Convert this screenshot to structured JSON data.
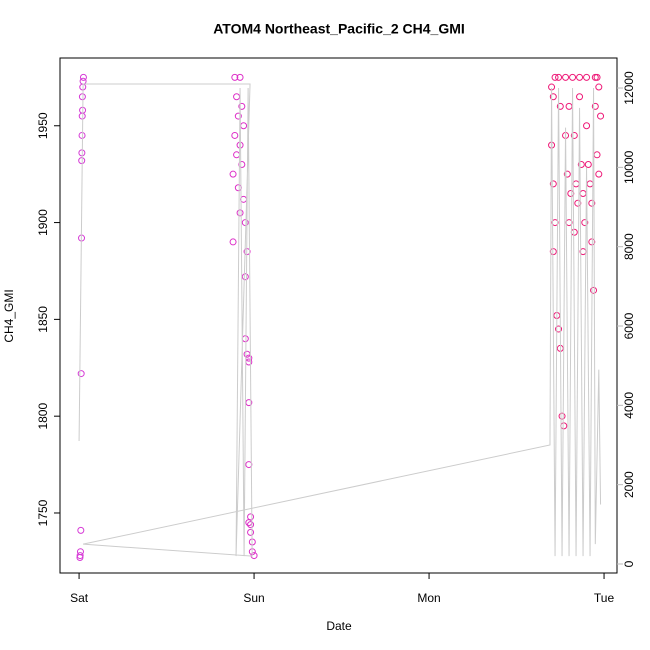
{
  "chart_data": {
    "type": "scatter",
    "title": "ATOM4 Northeast_Pacific_2 CH4_GMI",
    "x_label": "Date",
    "y_label": "CH4_GMI",
    "xlim": [
      -0.109,
      3.074
    ],
    "xticks": [
      {
        "value": 0,
        "label": "Sat"
      },
      {
        "value": 1,
        "label": "Sun"
      },
      {
        "value": 2,
        "label": "Mon"
      },
      {
        "value": 3,
        "label": "Tue"
      }
    ],
    "ylim": [
      1719,
      1985
    ],
    "yticks": [
      1750,
      1800,
      1850,
      1900,
      1950
    ],
    "y2lim": [
      -227,
      12757
    ],
    "y2ticks": [
      0,
      2000,
      4000,
      6000,
      8000,
      10000,
      12000
    ],
    "y2_color": "#bbbbbb",
    "series": [
      {
        "color": "#d63ad6",
        "x": [
          0.025,
          0.023,
          0.021,
          0.019,
          0.02,
          0.018,
          0.017,
          0.016,
          0.015,
          0.014,
          0.012,
          0.01,
          0.008,
          0.006,
          0.005
        ],
        "values": [
          1975,
          1973,
          1970,
          1965,
          1958,
          1955,
          1945,
          1936,
          1932,
          1892,
          1822,
          1741,
          1730,
          1728,
          1727
        ]
      },
      {
        "color": "#dd2fc8",
        "x": [
          0.89,
          0.92,
          0.9,
          0.93,
          0.91,
          0.94,
          0.89,
          0.92,
          0.9,
          0.93,
          0.88,
          0.91,
          0.94,
          0.92,
          0.95,
          0.88,
          0.96,
          0.95,
          0.95,
          0.96,
          0.97,
          0.97,
          0.97,
          0.97,
          0.98,
          0.97,
          0.98,
          0.98,
          0.99,
          0.99,
          1.0
        ],
        "values": [
          1975,
          1975,
          1965,
          1960,
          1955,
          1950,
          1945,
          1940,
          1935,
          1930,
          1925,
          1918,
          1912,
          1905,
          1900,
          1890,
          1885,
          1872,
          1840,
          1832,
          1830,
          1828,
          1807,
          1775,
          1748,
          1745,
          1744,
          1740,
          1735,
          1730,
          1728
        ]
      },
      {
        "color": "#ee1a78",
        "x": [
          2.7,
          2.71,
          2.72,
          2.7,
          2.71,
          2.72,
          2.71,
          2.73,
          2.74,
          2.75,
          2.74,
          2.75,
          2.76,
          2.77,
          2.78,
          2.78,
          2.79,
          2.8,
          2.81,
          2.8,
          2.82,
          2.83,
          2.84,
          2.83,
          2.85,
          2.86,
          2.87,
          2.86,
          2.88,
          2.89,
          2.88,
          2.9,
          2.9,
          2.91,
          2.92,
          2.93,
          2.93,
          2.94,
          2.95,
          2.95,
          2.96,
          2.97,
          2.97,
          2.96,
          2.98
        ],
        "values": [
          1970,
          1965,
          1975,
          1940,
          1920,
          1900,
          1885,
          1852,
          1845,
          1835,
          1975,
          1960,
          1800,
          1795,
          1975,
          1945,
          1925,
          1960,
          1915,
          1900,
          1975,
          1945,
          1920,
          1895,
          1910,
          1975,
          1930,
          1965,
          1915,
          1900,
          1885,
          1975,
          1950,
          1930,
          1920,
          1910,
          1890,
          1865,
          1975,
          1960,
          1935,
          1925,
          1970,
          1975,
          1955
        ]
      },
      {
        "type": "line",
        "axis": "y2",
        "color": "#cccccc",
        "x": [
          0,
          0.023,
          0.977,
          0.897,
          0.92,
          0.943,
          0.966,
          0.989,
          0.023,
          2.691,
          2.7,
          2.72,
          2.74,
          2.76,
          2.78,
          2.8,
          2.82,
          2.84,
          2.86,
          2.88,
          2.9,
          2.92,
          2.94,
          2.95,
          2.97,
          2.98
        ],
        "values": [
          3100,
          12100,
          12100,
          200,
          12000,
          200,
          12000,
          200,
          500,
          3000,
          12000,
          200,
          12000,
          200,
          11000,
          200,
          12000,
          200,
          11500,
          200,
          10000,
          200,
          12000,
          500,
          4900,
          1500
        ]
      }
    ]
  }
}
